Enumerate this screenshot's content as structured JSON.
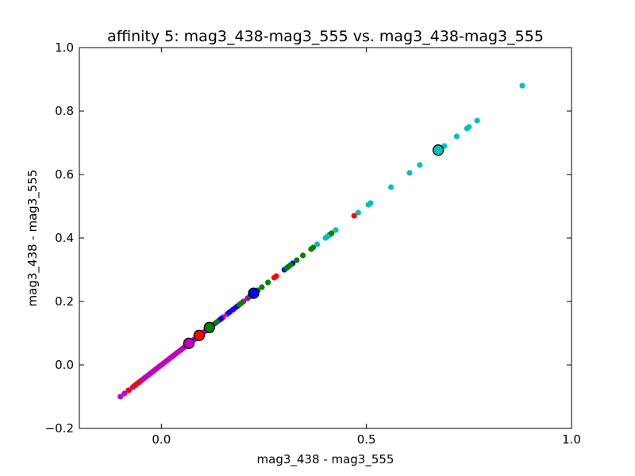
{
  "chart_data": {
    "type": "scatter",
    "title": "affinity 5: mag3_438-mag3_555 vs. mag3_438-mag3_555",
    "xlabel": "mag3_438 - mag3_555",
    "ylabel": "mag3_438 - mag3_555",
    "xlim": [
      -0.2,
      1.0
    ],
    "ylim": [
      -0.2,
      1.0
    ],
    "xticks": [
      {
        "value": 0.0,
        "label": "0.0"
      },
      {
        "value": 0.5,
        "label": "0.5"
      },
      {
        "value": 1.0,
        "label": "1.0"
      }
    ],
    "yticks": [
      {
        "value": -0.2,
        "label": "−0.2"
      },
      {
        "value": 0.0,
        "label": "0.0"
      },
      {
        "value": 0.2,
        "label": "0.2"
      },
      {
        "value": 0.4,
        "label": "0.4"
      },
      {
        "value": 0.6,
        "label": "0.6"
      },
      {
        "value": 0.8,
        "label": "0.8"
      },
      {
        "value": 1.0,
        "label": "1.0"
      }
    ],
    "grid": false,
    "series": [
      {
        "color": "#bf00bf",
        "points": [
          [
            -0.1,
            -0.1
          ],
          [
            -0.09,
            -0.09
          ],
          [
            -0.08,
            -0.08
          ],
          [
            -0.07,
            -0.07
          ],
          [
            -0.065,
            -0.065
          ],
          [
            -0.06,
            -0.06
          ],
          [
            -0.055,
            -0.055
          ],
          [
            -0.05,
            -0.05
          ],
          [
            -0.045,
            -0.045
          ],
          [
            -0.04,
            -0.04
          ],
          [
            -0.035,
            -0.035
          ],
          [
            -0.03,
            -0.03
          ],
          [
            -0.025,
            -0.025
          ],
          [
            -0.02,
            -0.02
          ],
          [
            -0.015,
            -0.015
          ],
          [
            -0.01,
            -0.01
          ],
          [
            -0.005,
            -0.005
          ],
          [
            0.0,
            0.0
          ],
          [
            0.005,
            0.005
          ],
          [
            0.01,
            0.01
          ],
          [
            0.015,
            0.015
          ],
          [
            0.02,
            0.02
          ],
          [
            0.025,
            0.025
          ],
          [
            0.03,
            0.03
          ],
          [
            0.035,
            0.035
          ],
          [
            0.04,
            0.04
          ],
          [
            0.045,
            0.045
          ],
          [
            0.05,
            0.05
          ],
          [
            0.055,
            0.055
          ],
          [
            0.06,
            0.06
          ],
          [
            0.065,
            0.065
          ],
          [
            0.08,
            0.08
          ],
          [
            0.085,
            0.085
          ],
          [
            0.1,
            0.1
          ],
          [
            0.105,
            0.105
          ],
          [
            0.13,
            0.13
          ],
          [
            0.14,
            0.14
          ],
          [
            0.15,
            0.15
          ],
          [
            0.16,
            0.16
          ],
          [
            0.17,
            0.17
          ],
          [
            0.18,
            0.18
          ],
          [
            0.2,
            0.2
          ],
          [
            0.21,
            0.21
          ]
        ]
      },
      {
        "color": "#ff0000",
        "points": [
          [
            -0.08,
            -0.08
          ],
          [
            -0.065,
            -0.065
          ],
          [
            -0.055,
            -0.055
          ],
          [
            0.09,
            0.09
          ],
          [
            0.275,
            0.275
          ],
          [
            0.28,
            0.28
          ],
          [
            0.47,
            0.47
          ]
        ]
      },
      {
        "color": "#0000ff",
        "points": [
          [
            0.145,
            0.145
          ],
          [
            0.165,
            0.165
          ],
          [
            0.175,
            0.175
          ],
          [
            0.185,
            0.185
          ],
          [
            0.22,
            0.22
          ],
          [
            0.3,
            0.3
          ],
          [
            0.32,
            0.32
          ]
        ]
      },
      {
        "color": "#008000",
        "points": [
          [
            0.135,
            0.135
          ],
          [
            0.19,
            0.19
          ],
          [
            0.195,
            0.195
          ],
          [
            0.215,
            0.215
          ],
          [
            0.22,
            0.22
          ],
          [
            0.235,
            0.235
          ],
          [
            0.245,
            0.245
          ],
          [
            0.26,
            0.26
          ],
          [
            0.305,
            0.305
          ],
          [
            0.31,
            0.31
          ],
          [
            0.315,
            0.315
          ],
          [
            0.33,
            0.33
          ],
          [
            0.345,
            0.345
          ],
          [
            0.365,
            0.365
          ],
          [
            0.37,
            0.37
          ],
          [
            0.41,
            0.41
          ],
          [
            0.415,
            0.415
          ]
        ]
      },
      {
        "color": "#00bfbf",
        "points": [
          [
            0.38,
            0.38
          ],
          [
            0.4,
            0.4
          ],
          [
            0.405,
            0.405
          ],
          [
            0.425,
            0.425
          ],
          [
            0.48,
            0.48
          ],
          [
            0.505,
            0.505
          ],
          [
            0.51,
            0.51
          ],
          [
            0.56,
            0.56
          ],
          [
            0.605,
            0.605
          ],
          [
            0.63,
            0.63
          ],
          [
            0.69,
            0.69
          ],
          [
            0.72,
            0.72
          ],
          [
            0.745,
            0.745
          ],
          [
            0.75,
            0.75
          ],
          [
            0.77,
            0.77
          ],
          [
            0.88,
            0.88
          ]
        ]
      }
    ],
    "highlighted_points": [
      {
        "x": 0.067,
        "y": 0.068,
        "color": "#bf00bf"
      },
      {
        "x": 0.092,
        "y": 0.093,
        "color": "#ff0000"
      },
      {
        "x": 0.117,
        "y": 0.118,
        "color": "#008000"
      },
      {
        "x": 0.225,
        "y": 0.226,
        "color": "#0000ff"
      },
      {
        "x": 0.675,
        "y": 0.677,
        "color": "#00bfbf"
      }
    ]
  }
}
